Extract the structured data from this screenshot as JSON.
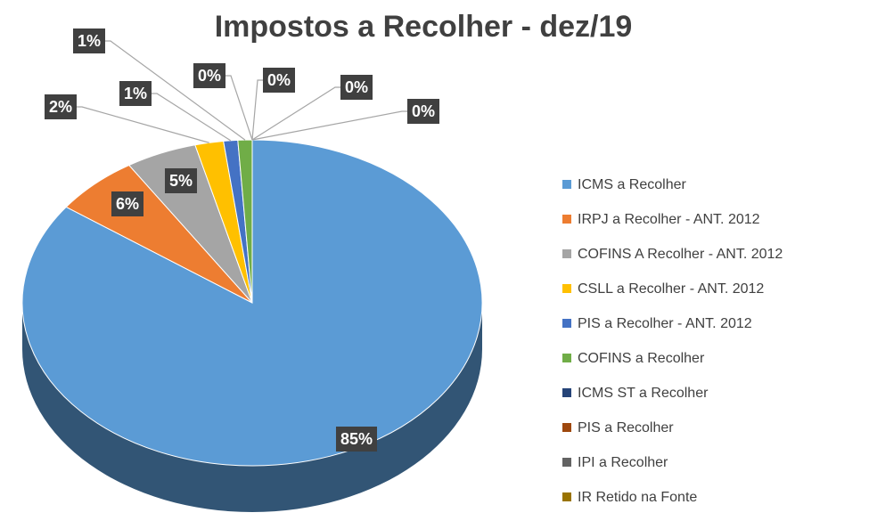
{
  "chart_data": {
    "type": "pie",
    "title": "Impostos a Recolher - dez/19",
    "categories": [
      "ICMS a Recolher",
      "IRPJ a Recolher - ANT. 2012",
      "COFINS A Recolher - ANT. 2012",
      "CSLL a Recolher - ANT. 2012",
      "PIS a Recolher - ANT. 2012",
      "COFINS a Recolher",
      "ICMS ST a Recolher",
      "PIS a Recolher",
      "IPI a Recolher",
      "IR Retido na Fonte"
    ],
    "values": [
      85,
      6,
      5,
      2,
      1,
      1,
      0,
      0,
      0,
      0
    ],
    "value_labels": [
      "85%",
      "6%",
      "5%",
      "2%",
      "1%",
      "1%",
      "0%",
      "0%",
      "0%",
      "0%"
    ],
    "colors": [
      "#5b9bd5",
      "#ed7d31",
      "#a5a5a5",
      "#ffc000",
      "#4472c4",
      "#70ad47",
      "#264478",
      "#9e480e",
      "#636363",
      "#997300"
    ],
    "legend": "right"
  }
}
